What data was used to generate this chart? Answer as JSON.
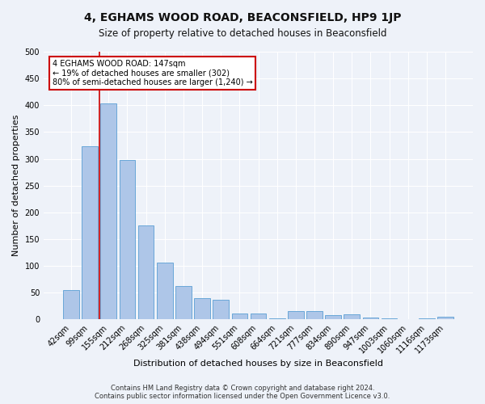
{
  "title": "4, EGHAMS WOOD ROAD, BEACONSFIELD, HP9 1JP",
  "subtitle": "Size of property relative to detached houses in Beaconsfield",
  "xlabel": "Distribution of detached houses by size in Beaconsfield",
  "ylabel": "Number of detached properties",
  "categories": [
    "42sqm",
    "99sqm",
    "155sqm",
    "212sqm",
    "268sqm",
    "325sqm",
    "381sqm",
    "438sqm",
    "494sqm",
    "551sqm",
    "608sqm",
    "664sqm",
    "721sqm",
    "777sqm",
    "834sqm",
    "890sqm",
    "947sqm",
    "1003sqm",
    "1060sqm",
    "1116sqm",
    "1173sqm"
  ],
  "values": [
    55,
    323,
    403,
    298,
    175,
    107,
    62,
    40,
    37,
    11,
    11,
    2,
    15,
    15,
    8,
    9,
    4,
    2,
    0,
    2,
    5
  ],
  "bar_color": "#aec6e8",
  "bar_edge_color": "#5a9fd4",
  "vline_color": "#cc0000",
  "annotation_text": "4 EGHAMS WOOD ROAD: 147sqm\n← 19% of detached houses are smaller (302)\n80% of semi-detached houses are larger (1,240) →",
  "annotation_box_color": "#ffffff",
  "annotation_box_edge_color": "#cc0000",
  "ylim": [
    0,
    500
  ],
  "yticks": [
    0,
    50,
    100,
    150,
    200,
    250,
    300,
    350,
    400,
    450,
    500
  ],
  "footer_line1": "Contains HM Land Registry data © Crown copyright and database right 2024.",
  "footer_line2": "Contains public sector information licensed under the Open Government Licence v3.0.",
  "bg_color": "#eef2f9",
  "grid_color": "#ffffff",
  "title_fontsize": 10,
  "subtitle_fontsize": 8.5,
  "axis_label_fontsize": 8,
  "tick_fontsize": 7,
  "footer_fontsize": 6
}
